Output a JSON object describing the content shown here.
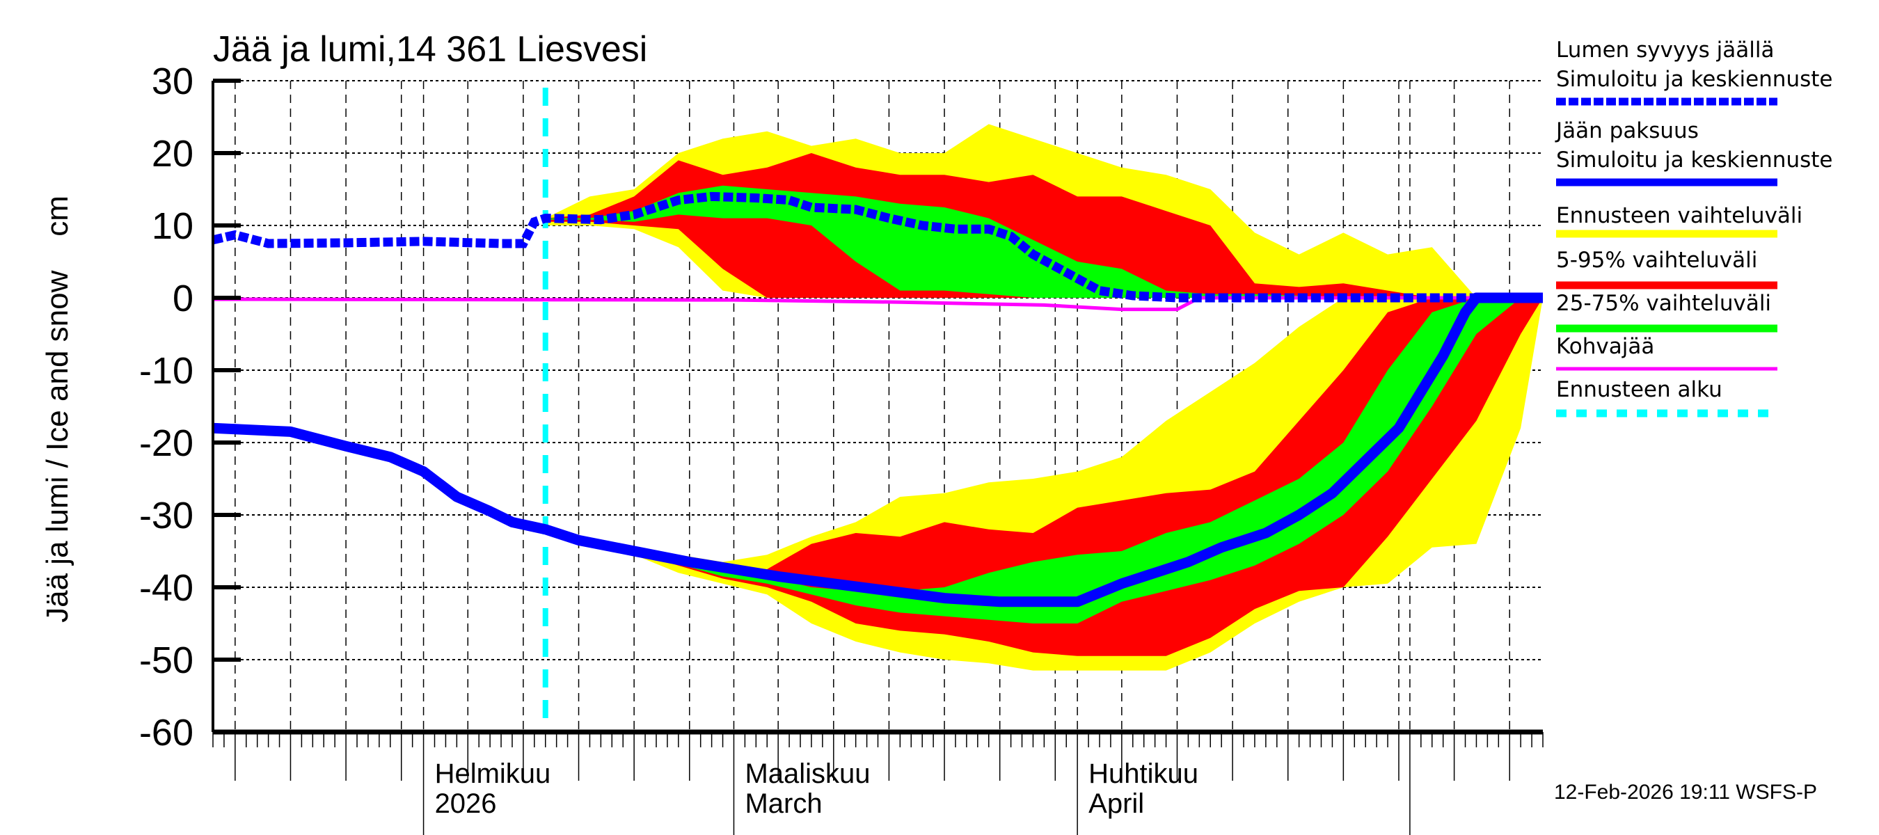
{
  "chart_data": {
    "type": "area",
    "title": "Jää ja lumi,14 361 Liesvesi",
    "ylabel": "Jää ja lumi / Ice and snow    cm",
    "ylim": [
      -60,
      30
    ],
    "yticks": [
      30,
      20,
      10,
      0,
      -10,
      -20,
      -30,
      -40,
      -50,
      -60
    ],
    "xlim": [
      "2026-01-13",
      "2026-05-13"
    ],
    "grid": true,
    "legend_placement": "right",
    "xtick_labels": [
      {
        "date": "2026-02-01",
        "line1": "Helmikuu",
        "line2": "2026"
      },
      {
        "date": "2026-03-01",
        "line1": "Maaliskuu",
        "line2": "March"
      },
      {
        "date": "2026-04-01",
        "line1": "Huhtikuu",
        "line2": "April"
      }
    ],
    "forecast_start": "2026-02-12",
    "timestamp": "12-Feb-2026 19:11 WSFS-P",
    "colors": {
      "snow": "#0000ff",
      "ice": "#0000ff",
      "range_full": "#ffff00",
      "range_5_95": "#ff0000",
      "range_25_75": "#00ff00",
      "slush": "#ff00ff",
      "forecast_start": "#00ffff"
    },
    "legend": [
      {
        "label1": "Lumen syvyys jäällä",
        "label2": "Simuloitu ja keskiennuste",
        "color": "#0000ff",
        "style": "dashed"
      },
      {
        "label1": "Jään paksuus",
        "label2": "Simuloitu ja keskiennuste",
        "color": "#0000ff",
        "style": "solid"
      },
      {
        "label1": "Ennusteen vaihteluväli",
        "color": "#ffff00",
        "style": "solid"
      },
      {
        "label1": "5-95% vaihteluväli",
        "color": "#ff0000",
        "style": "solid"
      },
      {
        "label1": "25-75% vaihteluväli",
        "color": "#00ff00",
        "style": "solid"
      },
      {
        "label1": "Kohvajää",
        "color": "#ff00ff",
        "style": "thin"
      },
      {
        "label1": "Ennusteen alku",
        "color": "#00ffff",
        "style": "dashed"
      }
    ],
    "snow_mean": [
      [
        "2026-01-13",
        8
      ],
      [
        "2026-01-15",
        8.7
      ],
      [
        "2026-01-18",
        7.5
      ],
      [
        "2026-01-25",
        7.6
      ],
      [
        "2026-02-01",
        7.8
      ],
      [
        "2026-02-08",
        7.5
      ],
      [
        "2026-02-10",
        7.5
      ],
      [
        "2026-02-11",
        10.5
      ],
      [
        "2026-02-12",
        11
      ],
      [
        "2026-02-17",
        10.8
      ],
      [
        "2026-02-20",
        11.5
      ],
      [
        "2026-02-24",
        13.5
      ],
      [
        "2026-02-27",
        14
      ],
      [
        "2026-03-03",
        13.8
      ],
      [
        "2026-03-06",
        13.5
      ],
      [
        "2026-03-08",
        12.5
      ],
      [
        "2026-03-12",
        12.2
      ],
      [
        "2026-03-15",
        11
      ],
      [
        "2026-03-18",
        10
      ],
      [
        "2026-03-21",
        9.5
      ],
      [
        "2026-03-24",
        9.5
      ],
      [
        "2026-03-26",
        8.5
      ],
      [
        "2026-03-28",
        6
      ],
      [
        "2026-03-31",
        3.5
      ],
      [
        "2026-04-03",
        1
      ],
      [
        "2026-04-06",
        0.3
      ],
      [
        "2026-04-10",
        0
      ],
      [
        "2026-05-13",
        0
      ]
    ],
    "ice_mean": [
      [
        "2026-01-13",
        -18
      ],
      [
        "2026-01-20",
        -18.5
      ],
      [
        "2026-01-25",
        -20.5
      ],
      [
        "2026-01-29",
        -22
      ],
      [
        "2026-02-01",
        -24
      ],
      [
        "2026-02-04",
        -27.5
      ],
      [
        "2026-02-07",
        -29.5
      ],
      [
        "2026-02-09",
        -31
      ],
      [
        "2026-02-12",
        -32
      ],
      [
        "2026-02-15",
        -33.5
      ],
      [
        "2026-02-20",
        -35
      ],
      [
        "2026-02-25",
        -36.5
      ],
      [
        "2026-03-01",
        -37.5
      ],
      [
        "2026-03-05",
        -38.5
      ],
      [
        "2026-03-10",
        -39.5
      ],
      [
        "2026-03-15",
        -40.5
      ],
      [
        "2026-03-20",
        -41.5
      ],
      [
        "2026-03-25",
        -42
      ],
      [
        "2026-04-01",
        -42
      ],
      [
        "2026-04-05",
        -39.5
      ],
      [
        "2026-04-08",
        -38
      ],
      [
        "2026-04-11",
        -36.5
      ],
      [
        "2026-04-14",
        -34.5
      ],
      [
        "2026-04-18",
        -32.5
      ],
      [
        "2026-04-21",
        -30
      ],
      [
        "2026-04-24",
        -27
      ],
      [
        "2026-04-27",
        -22.5
      ],
      [
        "2026-04-30",
        -18
      ],
      [
        "2026-05-02",
        -13
      ],
      [
        "2026-05-04",
        -8
      ],
      [
        "2026-05-06",
        -2
      ],
      [
        "2026-05-07",
        0
      ],
      [
        "2026-05-13",
        0
      ]
    ],
    "slush_ice": [
      [
        "2026-01-13",
        -0.2
      ],
      [
        "2026-03-01",
        -0.3
      ],
      [
        "2026-03-16",
        -0.6
      ],
      [
        "2026-03-29",
        -1
      ],
      [
        "2026-04-05",
        -1.6
      ],
      [
        "2026-04-10",
        -1.6
      ],
      [
        "2026-04-12",
        0
      ],
      [
        "2026-05-13",
        0
      ]
    ],
    "forecast_dates": [
      "2026-02-12",
      "2026-02-16",
      "2026-02-20",
      "2026-02-24",
      "2026-02-28",
      "2026-03-04",
      "2026-03-08",
      "2026-03-12",
      "2026-03-16",
      "2026-03-20",
      "2026-03-24",
      "2026-03-28",
      "2026-04-01",
      "2026-04-05",
      "2026-04-09",
      "2026-04-13",
      "2026-04-17",
      "2026-04-21",
      "2026-04-25",
      "2026-04-29",
      "2026-05-03",
      "2026-05-07",
      "2026-05-11",
      "2026-05-13"
    ],
    "snow_bands": {
      "full": {
        "upper": [
          11,
          14,
          15,
          20,
          22,
          23,
          21,
          22,
          20,
          20,
          24,
          22,
          20,
          18,
          17,
          15,
          9,
          6,
          9,
          6,
          7,
          0,
          0,
          0
        ],
        "lower": [
          10,
          10,
          9.5,
          7,
          1,
          0,
          0,
          0,
          0,
          0,
          0,
          0,
          0,
          0,
          0,
          0,
          0,
          0,
          0,
          0,
          0,
          0,
          0,
          0
        ]
      },
      "p5_95": {
        "upper": [
          11,
          11.5,
          14,
          19,
          17,
          18,
          20,
          18,
          17,
          17,
          16,
          17,
          14,
          14,
          12,
          10,
          2,
          1.5,
          2,
          1,
          0,
          0,
          0,
          0
        ],
        "lower": [
          10.5,
          10.5,
          10,
          9.5,
          4,
          0,
          0,
          0,
          0,
          0,
          0,
          0,
          0,
          0,
          0,
          0,
          0,
          0,
          0,
          0,
          0,
          0,
          0,
          0
        ]
      },
      "p25_75": {
        "upper": [
          11,
          11,
          12,
          14.5,
          15.5,
          15,
          14.5,
          14,
          13,
          12.5,
          11,
          8,
          5,
          4,
          1,
          0.5,
          0.5,
          0.3,
          0,
          0,
          0,
          0,
          0,
          0
        ],
        "lower": [
          10.8,
          10.8,
          10.5,
          11.5,
          11,
          11,
          10,
          5,
          1,
          1,
          0.5,
          0,
          0,
          0,
          0,
          0,
          0,
          0,
          0,
          0,
          0,
          0,
          0,
          0
        ]
      }
    },
    "ice_bands": {
      "full": {
        "upper": [
          -32,
          -33.2,
          -34.3,
          -35.5,
          -36.5,
          -35.5,
          -33,
          -31,
          -27.5,
          -27,
          -25.5,
          -25,
          -24,
          -22,
          -17,
          -13,
          -9,
          -4,
          0,
          0,
          0,
          0,
          0,
          0
        ],
        "lower": [
          -32,
          -33.8,
          -35.5,
          -38,
          -39.5,
          -41,
          -45,
          -47.5,
          -49,
          -50,
          -50.5,
          -51.5,
          -51.5,
          -51.5,
          -51.5,
          -49,
          -45,
          -42,
          -40,
          -39.5,
          -34.5,
          -34,
          -18,
          0
        ]
      },
      "p5_95": {
        "upper": [
          -32,
          -33.3,
          -34.5,
          -35.8,
          -37,
          -37.5,
          -34,
          -32.5,
          -33,
          -31,
          -32,
          -32.5,
          -29,
          -28,
          -27,
          -26.5,
          -24,
          -17,
          -10,
          -2,
          0,
          0,
          0,
          0
        ],
        "lower": [
          -32,
          -33.7,
          -35.2,
          -37,
          -38.8,
          -40,
          -42,
          -45,
          -46,
          -46.5,
          -47.5,
          -49,
          -49.5,
          -49.5,
          -49.5,
          -47,
          -43,
          -40.5,
          -40,
          -33,
          -25,
          -17,
          -5,
          0
        ]
      },
      "p25_75": {
        "upper": [
          -32,
          -33.5,
          -34.8,
          -36.3,
          -37.8,
          -38.5,
          -40,
          -40.5,
          -40.5,
          -40,
          -38,
          -36.5,
          -35.5,
          -35,
          -32.5,
          -31,
          -28,
          -25,
          -20,
          -10,
          -2,
          0,
          0,
          0
        ],
        "lower": [
          -32,
          -33.6,
          -35,
          -36.8,
          -38.5,
          -39.5,
          -41,
          -42.5,
          -43.5,
          -44,
          -44.5,
          -45,
          -45,
          -42,
          -40.5,
          -39,
          -37,
          -34,
          -30,
          -24,
          -15,
          -5,
          0,
          0
        ]
      }
    }
  }
}
